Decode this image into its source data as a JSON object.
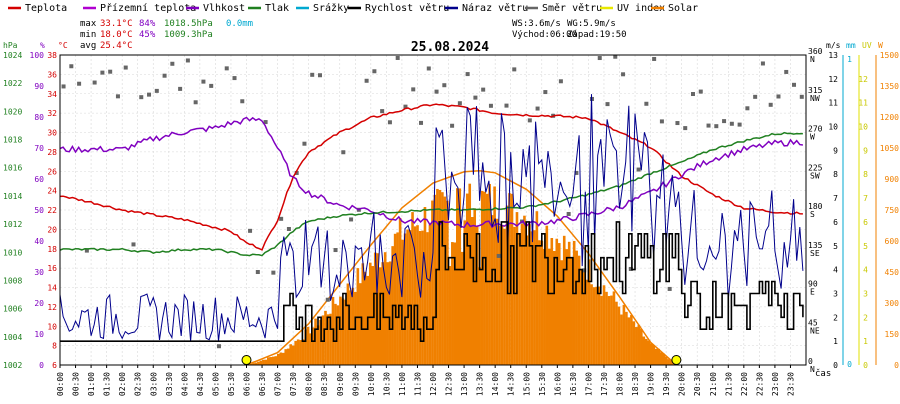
{
  "chart_data": {
    "type": "line",
    "title": "25.08.2024",
    "legend": [
      {
        "name": "Teplota",
        "color": "#d40000"
      },
      {
        "name": "Přízemní teplota",
        "color": "#b000d0"
      },
      {
        "name": "Vlhkost",
        "color": "#8000c0"
      },
      {
        "name": "Tlak",
        "color": "#208020"
      },
      {
        "name": "Srážky",
        "color": "#00a8d0"
      },
      {
        "name": "Rychlost větru",
        "color": "#000000"
      },
      {
        "name": "Náraz větru",
        "color": "#00008c"
      },
      {
        "name": "Směr větru",
        "color": "#666666"
      },
      {
        "name": "UV index",
        "color": "#e8e800"
      },
      {
        "name": "Solar",
        "color": "#f08000"
      }
    ],
    "stats": {
      "max_label": "max",
      "min_label": "min",
      "avg_label": "avg",
      "max_temp": "33.1°C",
      "max_hum": "84%",
      "max_press": "1018.5hPa",
      "max_rain": "0.0mm",
      "min_temp": "18.0°C",
      "min_hum": "45%",
      "min_press": "1009.3hPa",
      "avg_temp": "25.4°C"
    },
    "info": {
      "ws": "WS:3.6m/s",
      "wg": "WG:5.9m/s",
      "sunrise": "Východ:06:00",
      "sunset": "Západ:19:50"
    },
    "axes": {
      "hpa": {
        "unit": "hPa",
        "ticks": [
          "1002",
          "1004",
          "1006",
          "1008",
          "1010",
          "1012",
          "1014",
          "1016",
          "1018",
          "1020",
          "1022",
          "1024"
        ]
      },
      "pct": {
        "unit": "%",
        "ticks": [
          "0",
          "10",
          "20",
          "30",
          "40",
          "50",
          "60",
          "70",
          "80",
          "90",
          "100"
        ]
      },
      "degc": {
        "unit": "°C",
        "ticks": [
          "6",
          "8",
          "10",
          "12",
          "14",
          "16",
          "18",
          "20",
          "22",
          "24",
          "26",
          "28",
          "30",
          "32",
          "34",
          "36",
          "38"
        ]
      },
      "ms": {
        "unit": "m/s",
        "ticks": [
          "0",
          "1",
          "2",
          "3",
          "4",
          "5",
          "6",
          "7",
          "8",
          "9",
          "10",
          "11",
          "12",
          "13"
        ]
      },
      "dir": {
        "ticks": [
          {
            "deg": "0",
            "card": "N"
          },
          {
            "deg": "45",
            "card": "NE"
          },
          {
            "deg": "90",
            "card": "E"
          },
          {
            "deg": "135",
            "card": "SE"
          },
          {
            "deg": "180",
            "card": "S"
          },
          {
            "deg": "225",
            "card": "SW"
          },
          {
            "deg": "270",
            "card": "W"
          },
          {
            "deg": "315",
            "card": "NW"
          },
          {
            "deg": "360",
            "card": "N"
          }
        ]
      },
      "mm": {
        "unit": "mm",
        "ticks": [
          "0",
          "1"
        ]
      },
      "uv": {
        "unit": "UV",
        "ticks": [
          "0",
          "1",
          "2",
          "3",
          "4",
          "5",
          "6",
          "7",
          "8",
          "9",
          "10",
          "11",
          "12"
        ]
      },
      "wm2": {
        "unit": "W",
        "ticks": [
          "0",
          "150",
          "300",
          "450",
          "600",
          "750",
          "900",
          "1050",
          "1200",
          "1350",
          "1500"
        ]
      },
      "x": {
        "label": "čas",
        "ticks": [
          "00:00",
          "00:30",
          "01:00",
          "01:30",
          "02:00",
          "02:30",
          "03:00",
          "03:30",
          "04:00",
          "04:30",
          "05:00",
          "05:30",
          "06:00",
          "06:30",
          "07:00",
          "07:30",
          "08:00",
          "08:30",
          "09:00",
          "09:30",
          "10:00",
          "10:30",
          "11:00",
          "11:30",
          "12:00",
          "12:30",
          "13:00",
          "13:30",
          "14:00",
          "14:30",
          "15:00",
          "15:30",
          "16:00",
          "16:30",
          "17:00",
          "17:30",
          "18:00",
          "18:30",
          "19:00",
          "19:30",
          "20:00",
          "20:30",
          "21:00",
          "21:30",
          "22:00",
          "22:30",
          "23:00",
          "23:30"
        ]
      }
    },
    "x_hours": [
      0,
      1,
      2,
      3,
      4,
      5,
      5.5,
      6,
      6.5,
      7,
      7.5,
      8,
      9,
      10,
      11,
      12,
      13,
      14,
      15,
      16,
      17,
      18,
      19,
      20,
      21,
      22,
      23,
      24
    ],
    "series": [
      {
        "name": "Teplota",
        "color": "#d40000",
        "values": [
          23.5,
          22.8,
          22.0,
          21.5,
          21.0,
          20.2,
          19.8,
          18.6,
          18.0,
          21.0,
          25.5,
          28.0,
          30.0,
          31.5,
          32.3,
          32.9,
          32.6,
          32.0,
          31.8,
          31.7,
          31.5,
          30.0,
          28.5,
          25.5,
          23.6,
          22.2,
          21.8,
          21.6
        ]
      },
      {
        "name": "Vlhkost",
        "color": "#8000c0",
        "values": [
          69.5,
          69.6,
          69.5,
          73.0,
          75.2,
          76.5,
          78.0,
          79.0,
          79.2,
          70.0,
          60.0,
          55.5,
          51.5,
          50.0,
          46.5,
          46.0,
          45.2,
          45.5,
          45.5,
          46.5,
          48.5,
          51.0,
          55.5,
          61.5,
          66.5,
          69.5,
          71.5,
          72.0
        ]
      },
      {
        "name": "Tlak",
        "color": "#208020",
        "values": [
          1010.2,
          1010.2,
          1010.2,
          1010.0,
          1010.2,
          1010.2,
          1010.0,
          1009.8,
          1009.8,
          1010.5,
          1011.5,
          1012.2,
          1012.6,
          1012.8,
          1012.9,
          1013.0,
          1013.0,
          1013.1,
          1013.2,
          1013.6,
          1014.1,
          1014.7,
          1015.6,
          1016.4,
          1017.3,
          1017.9,
          1018.4,
          1018.5
        ]
      },
      {
        "name": "Solar",
        "color": "#f08000",
        "x": [
          6.0,
          7,
          8,
          9,
          10,
          11,
          12,
          13,
          13.5,
          14,
          15,
          16,
          17,
          18,
          19,
          19.83
        ],
        "values": [
          0,
          60,
          200,
          390,
          580,
          760,
          880,
          935,
          940,
          930,
          850,
          720,
          540,
          330,
          110,
          0
        ]
      }
    ]
  }
}
